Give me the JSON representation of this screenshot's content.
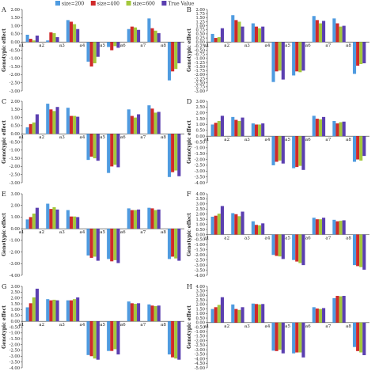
{
  "figure": {
    "y_axis_label": "Genotypic effect",
    "legend": [
      {
        "name": "size=200",
        "color": "#4f9be0"
      },
      {
        "name": "size=400",
        "color": "#d02a2a"
      },
      {
        "name": "size=600",
        "color": "#a4c83c"
      },
      {
        "name": "True Value",
        "color": "#5b3fb0"
      }
    ]
  },
  "chart_data": [
    {
      "panel": "A",
      "type": "bar",
      "categories": [
        "a1",
        "a2",
        "a3",
        "a4",
        "a5",
        "a6",
        "a7",
        "a8"
      ],
      "ylim": [
        -3.0,
        2.0
      ],
      "ytick_step": 0.5,
      "ytick_decimals": 2,
      "ylabel": "Genotypic effect",
      "grid": false,
      "legend": "top",
      "series": [
        {
          "name": "size=200",
          "values": [
            0.45,
            0.1,
            1.35,
            -1.2,
            -0.3,
            0.8,
            1.45,
            -2.35
          ]
        },
        {
          "name": "size=400",
          "values": [
            0.2,
            0.6,
            1.25,
            -1.5,
            -0.5,
            0.95,
            0.85,
            -1.8
          ]
        },
        {
          "name": "size=600",
          "values": [
            0.1,
            0.55,
            1.1,
            -1.3,
            -0.25,
            0.9,
            0.7,
            -1.65
          ]
        },
        {
          "name": "True Value",
          "values": [
            0.4,
            0.3,
            0.8,
            -0.9,
            -0.35,
            0.75,
            0.55,
            -1.3
          ]
        }
      ]
    },
    {
      "panel": "B",
      "type": "bar",
      "categories": [
        "a1",
        "a2",
        "a3",
        "a4",
        "a5",
        "a6",
        "a7",
        "a8"
      ],
      "ylim": [
        -3.0,
        2.0
      ],
      "ytick_step": 0.25,
      "ytick_decimals": 2,
      "ylabel": "Genotypic effect",
      "grid": false,
      "series": [
        {
          "name": "size=200",
          "values": [
            0.5,
            1.65,
            1.15,
            -2.45,
            -2.05,
            1.6,
            1.45,
            -1.95
          ]
        },
        {
          "name": "size=400",
          "values": [
            0.25,
            1.35,
            0.95,
            -1.8,
            -1.8,
            1.35,
            1.15,
            -1.45
          ]
        },
        {
          "name": "size=600",
          "values": [
            0.3,
            1.25,
            0.85,
            -1.75,
            -1.85,
            1.15,
            0.95,
            -1.35
          ]
        },
        {
          "name": "True Value",
          "values": [
            0.85,
            0.95,
            0.95,
            -2.3,
            -1.75,
            1.3,
            1.0,
            -1.3
          ]
        }
      ]
    },
    {
      "panel": "C",
      "type": "bar",
      "categories": [
        "a1",
        "a2",
        "a3",
        "a4",
        "a5",
        "a6",
        "a7",
        "a8"
      ],
      "ylim": [
        -3.0,
        2.0
      ],
      "ytick_step": 0.5,
      "ytick_decimals": 2,
      "ylabel": "Genotypic effect",
      "grid": false,
      "series": [
        {
          "name": "size=200",
          "values": [
            0.4,
            1.85,
            1.6,
            -1.6,
            -2.4,
            1.5,
            1.75,
            -2.65
          ]
        },
        {
          "name": "size=400",
          "values": [
            0.6,
            1.5,
            1.1,
            -1.4,
            -2.0,
            1.1,
            1.55,
            -2.35
          ]
        },
        {
          "name": "size=600",
          "values": [
            0.7,
            1.4,
            1.1,
            -1.5,
            -1.9,
            1.0,
            1.3,
            -2.25
          ]
        },
        {
          "name": "True Value",
          "values": [
            1.2,
            1.65,
            1.05,
            -1.65,
            -2.05,
            1.2,
            1.35,
            -2.6
          ]
        }
      ]
    },
    {
      "panel": "D",
      "type": "bar",
      "categories": [
        "a1",
        "a2",
        "a3",
        "a4",
        "a5",
        "a6",
        "a7",
        "a8"
      ],
      "ylim": [
        -4.0,
        3.0
      ],
      "ytick_step": 0.5,
      "ytick_decimals": 2,
      "ylabel": "Genotypic effect",
      "grid": false,
      "series": [
        {
          "name": "size=200",
          "values": [
            1.0,
            1.65,
            1.1,
            -2.5,
            -2.75,
            1.75,
            1.3,
            -2.2
          ]
        },
        {
          "name": "size=400",
          "values": [
            1.15,
            1.4,
            1.0,
            -2.2,
            -2.65,
            1.5,
            1.1,
            -2.0
          ]
        },
        {
          "name": "size=600",
          "values": [
            1.3,
            1.3,
            1.0,
            -2.1,
            -2.55,
            1.45,
            1.2,
            -2.1
          ]
        },
        {
          "name": "True Value",
          "values": [
            1.75,
            1.6,
            1.1,
            -2.35,
            -2.9,
            1.65,
            1.25,
            -1.7
          ]
        }
      ]
    },
    {
      "panel": "E",
      "type": "bar",
      "categories": [
        "a1",
        "a2",
        "a3",
        "a4",
        "a5",
        "a6",
        "a7",
        "a8"
      ],
      "ylim": [
        -4.0,
        3.0
      ],
      "ytick_step": 1,
      "ytick_decimals": 2,
      "ylabel": "Genotypic effect",
      "grid": false,
      "series": [
        {
          "name": "size=200",
          "values": [
            0.8,
            2.15,
            1.6,
            -2.3,
            -2.6,
            1.75,
            1.8,
            -2.6
          ]
        },
        {
          "name": "size=400",
          "values": [
            1.0,
            1.7,
            1.05,
            -2.5,
            -2.8,
            1.6,
            1.75,
            -2.4
          ]
        },
        {
          "name": "size=600",
          "values": [
            1.3,
            1.85,
            1.05,
            -2.4,
            -2.7,
            1.6,
            1.6,
            -2.55
          ]
        },
        {
          "name": "True Value",
          "values": [
            1.8,
            1.65,
            1.0,
            -2.75,
            -2.95,
            1.65,
            1.65,
            -2.75
          ]
        }
      ]
    },
    {
      "panel": "F",
      "type": "bar",
      "categories": [
        "a1",
        "a2",
        "a3",
        "a4",
        "a5",
        "a6",
        "a7",
        "a8"
      ],
      "ylim": [
        -4.0,
        4.0
      ],
      "ytick_step": 0.5,
      "ytick_decimals": 2,
      "ylabel": "Genotypic effect",
      "grid": false,
      "series": [
        {
          "name": "size=200",
          "values": [
            1.75,
            2.1,
            1.3,
            -2.0,
            -2.5,
            1.65,
            1.45,
            -3.0
          ]
        },
        {
          "name": "size=400",
          "values": [
            1.85,
            2.0,
            0.95,
            -2.1,
            -2.65,
            1.5,
            1.3,
            -3.1
          ]
        },
        {
          "name": "size=600",
          "values": [
            2.05,
            1.8,
            0.9,
            -2.15,
            -2.8,
            1.5,
            1.35,
            -3.2
          ]
        },
        {
          "name": "True Value",
          "values": [
            2.8,
            2.25,
            1.1,
            -2.4,
            -3.0,
            1.65,
            1.4,
            -3.45
          ]
        }
      ]
    },
    {
      "panel": "G",
      "type": "bar",
      "categories": [
        "a1",
        "a2",
        "a3",
        "a4",
        "a5",
        "a6",
        "a7",
        "a8"
      ],
      "ylim": [
        -4.0,
        3.0
      ],
      "ytick_step": 0.5,
      "ytick_decimals": 2,
      "ylabel": "Genotypic effect",
      "grid": false,
      "series": [
        {
          "name": "size=200",
          "values": [
            1.2,
            1.9,
            1.8,
            -2.9,
            -2.55,
            1.7,
            1.45,
            -2.85
          ]
        },
        {
          "name": "size=400",
          "values": [
            1.55,
            1.8,
            1.8,
            -3.0,
            -2.55,
            1.55,
            1.35,
            -3.1
          ]
        },
        {
          "name": "size=600",
          "values": [
            2.05,
            1.85,
            1.9,
            -3.2,
            -2.4,
            1.5,
            1.3,
            -3.2
          ]
        },
        {
          "name": "True Value",
          "values": [
            2.8,
            1.8,
            2.05,
            -3.3,
            -2.85,
            1.55,
            1.35,
            -3.3
          ]
        }
      ]
    },
    {
      "panel": "H",
      "type": "bar",
      "categories": [
        "a1",
        "a2",
        "a3",
        "a4",
        "a5",
        "a6",
        "a7",
        "a8"
      ],
      "ylim": [
        -5.0,
        4.0
      ],
      "ytick_step": 0.5,
      "ytick_decimals": 2,
      "ylabel": "Genotypic effect",
      "grid": false,
      "series": [
        {
          "name": "size=200",
          "values": [
            1.5,
            2.0,
            2.1,
            -3.1,
            -3.4,
            1.7,
            2.7,
            -2.7
          ]
        },
        {
          "name": "size=400",
          "values": [
            1.7,
            1.5,
            2.05,
            -3.15,
            -3.3,
            1.55,
            2.95,
            -3.15
          ]
        },
        {
          "name": "size=600",
          "values": [
            1.95,
            1.4,
            2.0,
            -3.0,
            -3.3,
            1.5,
            2.9,
            -3.3
          ]
        },
        {
          "name": "True Value",
          "values": [
            2.8,
            1.7,
            2.05,
            -3.4,
            -3.85,
            1.6,
            2.95,
            -3.6
          ]
        }
      ]
    }
  ]
}
